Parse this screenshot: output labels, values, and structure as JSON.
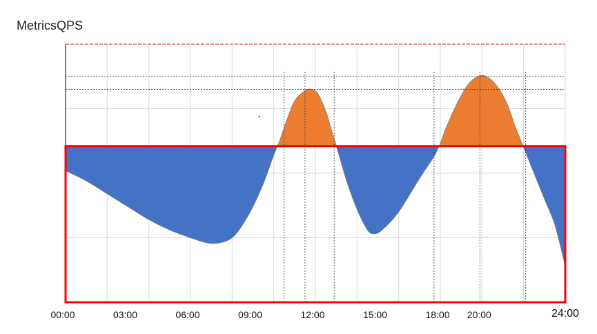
{
  "chart_data": {
    "type": "area",
    "title": "MetricsQPS",
    "xlabel": "",
    "ylabel": "",
    "x_unit": "hour",
    "xlim": [
      0,
      24
    ],
    "ticks": [
      {
        "x": 0,
        "label": "00:00"
      },
      {
        "x": 3,
        "label": "03:00"
      },
      {
        "x": 6,
        "label": "06:00"
      },
      {
        "x": 9,
        "label": "09:00"
      },
      {
        "x": 12,
        "label": "12:00"
      },
      {
        "x": 15,
        "label": "15:00"
      },
      {
        "x": 18,
        "label": "18:00"
      },
      {
        "x": 20,
        "label": "20:00"
      },
      {
        "x": 24,
        "label": "24:00"
      }
    ],
    "ylim": [
      0,
      1
    ],
    "threshold": 0.605,
    "grid": true,
    "colors": {
      "above_threshold": "#ed7d31",
      "below_threshold": "#4472c4",
      "threshold_box": "#ff0000",
      "top_line": "#e06666",
      "grid": "#d9d9d9",
      "guides": "#333333"
    },
    "curve": [
      [
        0,
        0.51
      ],
      [
        1,
        0.47
      ],
      [
        2,
        0.42
      ],
      [
        3,
        0.37
      ],
      [
        4,
        0.32
      ],
      [
        5,
        0.28
      ],
      [
        6,
        0.25
      ],
      [
        6.8,
        0.23
      ],
      [
        7.4,
        0.23
      ],
      [
        8,
        0.25
      ],
      [
        8.5,
        0.3
      ],
      [
        9,
        0.37
      ],
      [
        9.5,
        0.46
      ],
      [
        10,
        0.57
      ],
      [
        10.3,
        0.63
      ],
      [
        10.6,
        0.7
      ],
      [
        11,
        0.78
      ],
      [
        11.5,
        0.82
      ],
      [
        11.8,
        0.825
      ],
      [
        12.1,
        0.81
      ],
      [
        12.5,
        0.74
      ],
      [
        12.8,
        0.66
      ],
      [
        13.1,
        0.58
      ],
      [
        13.5,
        0.47
      ],
      [
        14,
        0.36
      ],
      [
        14.5,
        0.28
      ],
      [
        14.8,
        0.265
      ],
      [
        15.2,
        0.28
      ],
      [
        16,
        0.35
      ],
      [
        17,
        0.48
      ],
      [
        17.8,
        0.58
      ],
      [
        18.3,
        0.68
      ],
      [
        18.8,
        0.77
      ],
      [
        19.3,
        0.84
      ],
      [
        19.8,
        0.875
      ],
      [
        20.2,
        0.875
      ],
      [
        20.7,
        0.84
      ],
      [
        21.2,
        0.77
      ],
      [
        21.6,
        0.68
      ],
      [
        22,
        0.6
      ],
      [
        22.5,
        0.5
      ],
      [
        23,
        0.4
      ],
      [
        23.5,
        0.3
      ],
      [
        24,
        0.14
      ]
    ],
    "guides_vertical": [
      10.5,
      11.5,
      12.9,
      17.7,
      19.9,
      22.1
    ],
    "guides_horizontal": [
      0.825,
      0.875
    ]
  }
}
